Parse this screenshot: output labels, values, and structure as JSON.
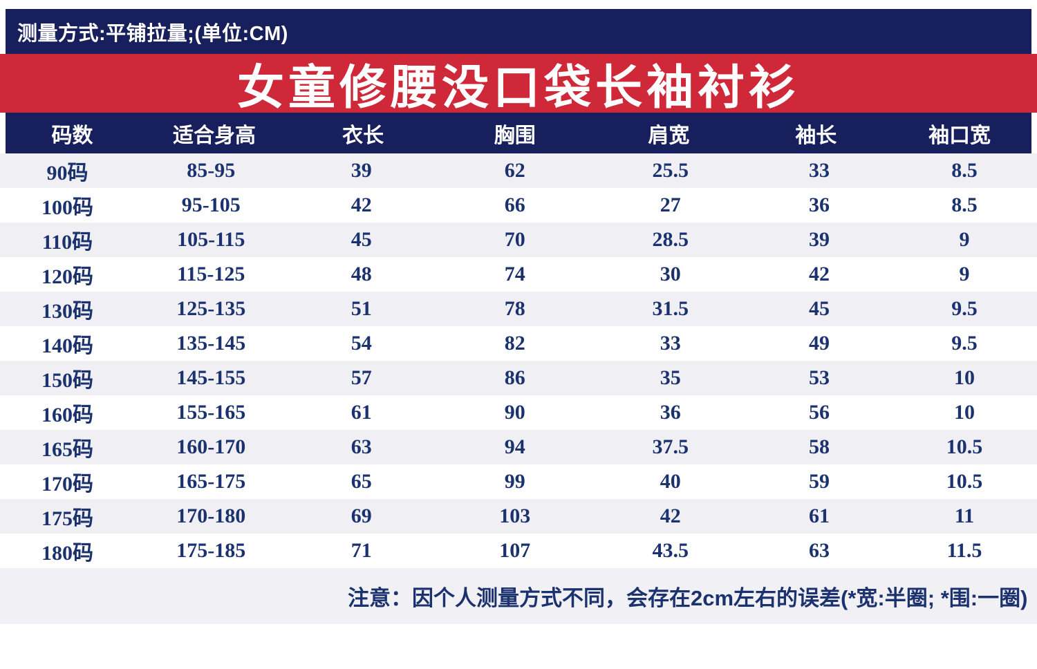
{
  "colors": {
    "navy": "#171f5d",
    "red": "#ce2839",
    "cell_text": "#1b326f",
    "stripe_row": "#efeff4",
    "note_band": "#f0f0f5"
  },
  "top_bar": {
    "text": "测量方式:平铺拉量;(单位:CM)"
  },
  "banner": {
    "title": "女童修腰没口袋长袖衬衫"
  },
  "table": {
    "columns": [
      "码数",
      "适合身高",
      "衣长",
      "胸围",
      "肩宽",
      "袖长",
      "袖口宽"
    ],
    "rows": [
      [
        "90码",
        "85-95",
        "39",
        "62",
        "25.5",
        "33",
        "8.5"
      ],
      [
        "100码",
        "95-105",
        "42",
        "66",
        "27",
        "36",
        "8.5"
      ],
      [
        "110码",
        "105-115",
        "45",
        "70",
        "28.5",
        "39",
        "9"
      ],
      [
        "120码",
        "115-125",
        "48",
        "74",
        "30",
        "42",
        "9"
      ],
      [
        "130码",
        "125-135",
        "51",
        "78",
        "31.5",
        "45",
        "9.5"
      ],
      [
        "140码",
        "135-145",
        "54",
        "82",
        "33",
        "49",
        "9.5"
      ],
      [
        "150码",
        "145-155",
        "57",
        "86",
        "35",
        "53",
        "10"
      ],
      [
        "160码",
        "155-165",
        "61",
        "90",
        "36",
        "56",
        "10"
      ],
      [
        "165码",
        "160-170",
        "63",
        "94",
        "37.5",
        "58",
        "10.5"
      ],
      [
        "170码",
        "165-175",
        "65",
        "99",
        "40",
        "59",
        "10.5"
      ],
      [
        "175码",
        "170-180",
        "69",
        "103",
        "42",
        "61",
        "11"
      ],
      [
        "180码",
        "175-185",
        "71",
        "107",
        "43.5",
        "63",
        "11.5"
      ]
    ],
    "unit": "CM"
  },
  "note": {
    "text": "注意：因个人测量方式不同，会存在2cm左右的误差(*宽:半圈; *围:一圈)"
  }
}
